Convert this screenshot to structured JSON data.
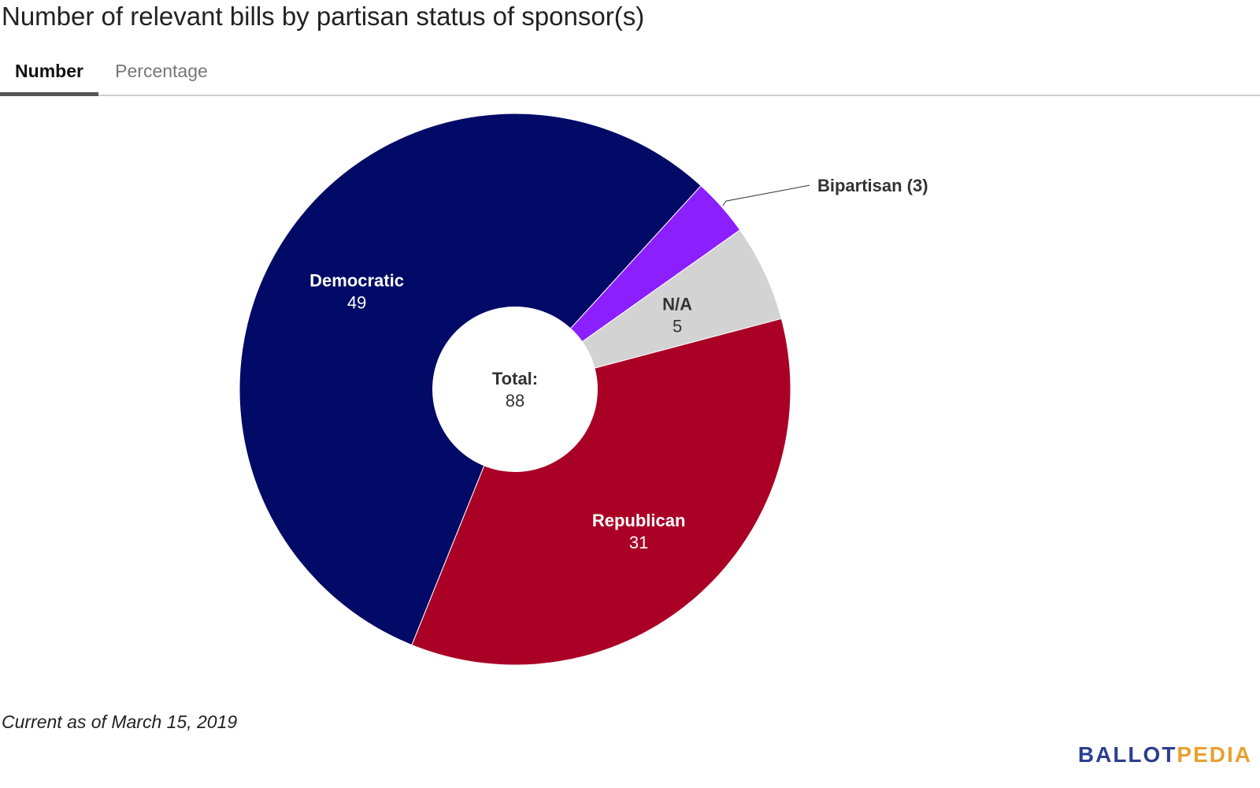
{
  "title": "Number of relevant bills by partisan status of sponsor(s)",
  "tabs": [
    {
      "label": "Number",
      "active": true
    },
    {
      "label": "Percentage",
      "active": false
    }
  ],
  "footnote": "Current as of March 15, 2019",
  "logo": {
    "part1": "BALLOT",
    "part2": "PEDIA"
  },
  "chart_data": {
    "type": "pie",
    "donut": true,
    "center_label": "Total:",
    "total": 88,
    "slices": [
      {
        "label": "Democratic",
        "value": 49,
        "color": "#010a66",
        "text_color": "#ffffff"
      },
      {
        "label": "Bipartisan",
        "value": 3,
        "color": "#8b1fff",
        "text_color": "#333333",
        "callout": "Bipartisan (3)"
      },
      {
        "label": "N/A",
        "value": 5,
        "color": "#d3d3d3",
        "text_color": "#333333"
      },
      {
        "label": "Republican",
        "value": 31,
        "color": "#aa0026",
        "text_color": "#ffffff"
      }
    ]
  }
}
